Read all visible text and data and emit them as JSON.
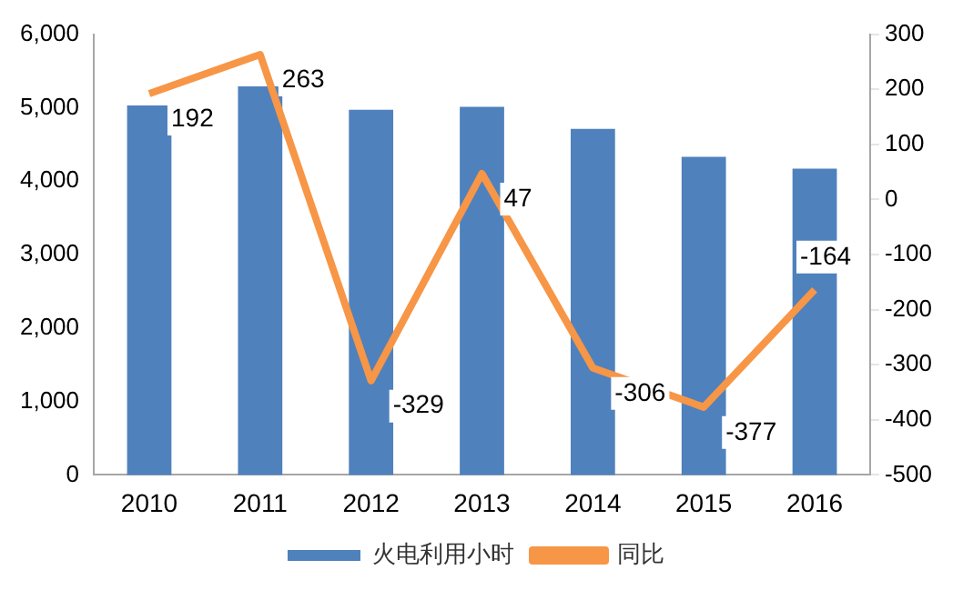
{
  "chart_data": {
    "type": "bar",
    "categories": [
      "2010",
      "2011",
      "2012",
      "2013",
      "2014",
      "2015",
      "2016"
    ],
    "series": [
      {
        "name": "火电利用小时",
        "color": "#4f81bd",
        "values": [
          5030,
          5290,
          4970,
          5010,
          4710,
          4330,
          4170
        ]
      },
      {
        "name": "同比",
        "type": "line",
        "axis": "y2",
        "color": "#f79646",
        "values": [
          192,
          263,
          -329,
          47,
          -306,
          -377,
          -164
        ],
        "value_labels": [
          "192",
          "263",
          "-329",
          "47",
          "-306",
          "-377",
          "-164"
        ]
      }
    ],
    "ylim": [
      0,
      6000
    ],
    "yticks": [
      {
        "value": 0,
        "label": "0"
      },
      {
        "value": 1000,
        "label": "1,000"
      },
      {
        "value": 2000,
        "label": "2,000"
      },
      {
        "value": 3000,
        "label": "3,000"
      },
      {
        "value": 4000,
        "label": "4,000"
      },
      {
        "value": 5000,
        "label": "5,000"
      },
      {
        "value": 6000,
        "label": "6,000"
      }
    ],
    "y2lim": [
      -500,
      300
    ],
    "y2ticks": [
      -500,
      -400,
      -300,
      -200,
      -100,
      0,
      100,
      200,
      300
    ],
    "legend": "bottom",
    "marker": "none"
  }
}
